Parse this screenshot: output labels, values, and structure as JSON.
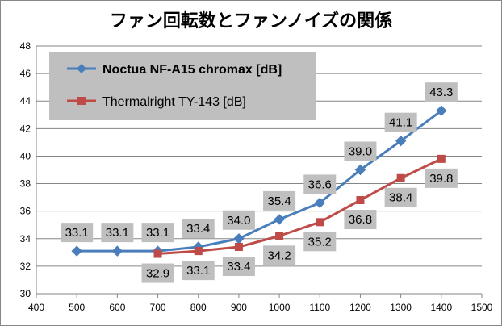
{
  "chart_data": {
    "type": "line",
    "title": "ファン回転数とファンノイズの関係",
    "xlabel": "",
    "ylabel": "",
    "xlim": [
      400,
      1500
    ],
    "ylim": [
      30,
      48
    ],
    "xticks": [
      400,
      500,
      600,
      700,
      800,
      900,
      1000,
      1100,
      1200,
      1300,
      1400,
      1500
    ],
    "yticks": [
      30,
      32,
      34,
      36,
      38,
      40,
      42,
      44,
      46,
      48
    ],
    "grid": {
      "horizontal": true,
      "vertical": false
    },
    "legend_position": "top-left",
    "series": [
      {
        "name": "Noctua NF-A15 chromax [dB]",
        "color": "#4a7ebb",
        "marker": "diamond",
        "label_position": "above",
        "x": [
          500,
          600,
          700,
          800,
          900,
          1000,
          1100,
          1200,
          1300,
          1400
        ],
        "values": [
          33.1,
          33.1,
          33.1,
          33.4,
          34.0,
          35.4,
          36.6,
          39.0,
          41.1,
          43.3
        ],
        "labels": [
          "33.1",
          "33.1",
          "33.1",
          "33.4",
          "34.0",
          "35.4",
          "36.6",
          "39.0",
          "41.1",
          "43.3"
        ]
      },
      {
        "name": "Thermalright TY-143 [dB]",
        "color": "#be4b48",
        "marker": "square",
        "label_position": "below",
        "x": [
          700,
          800,
          900,
          1000,
          1100,
          1200,
          1300,
          1400
        ],
        "values": [
          32.9,
          33.1,
          33.4,
          34.2,
          35.2,
          36.8,
          38.4,
          39.8
        ],
        "labels": [
          "32.9",
          "33.1",
          "33.4",
          "34.2",
          "35.2",
          "36.8",
          "38.4",
          "39.8"
        ]
      }
    ]
  },
  "colors": {
    "gridline": "#868686",
    "label_box": "#bfbfbf",
    "legend_box": "#bfbfbf"
  }
}
